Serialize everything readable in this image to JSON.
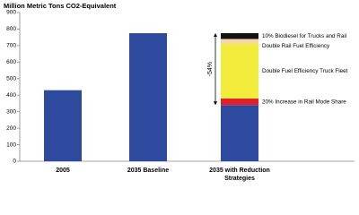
{
  "chart_data": {
    "type": "stacked-bar",
    "title": "Million Metric Tons CO2-Equivalent",
    "categories": [
      "2005",
      "2035 Baseline",
      "2035 with Reduction Strategies"
    ],
    "series": [
      {
        "color": "#2e4a9e",
        "values": [
          430,
          775,
          340
        ]
      },
      {
        "name": "20% Increase in Rail Mode Share",
        "color": "#e0202a",
        "values": [
          null,
          null,
          40
        ]
      },
      {
        "name": "Double Fuel Efficiency Truck Fleet",
        "color": "#f2ec3c",
        "values": [
          null,
          null,
          330
        ]
      },
      {
        "name": "Double Rail Fuel Efficiency",
        "color": "#f6d7a8",
        "values": [
          null,
          null,
          30
        ]
      },
      {
        "name": "10% Biodiesel for Trucks and Rail",
        "color": "#111111",
        "values": [
          null,
          null,
          35
        ]
      }
    ],
    "annotation": "-54%",
    "ylim": [
      0,
      900
    ],
    "yticks": [
      0,
      100,
      200,
      300,
      400,
      500,
      600,
      700,
      800,
      900
    ]
  }
}
